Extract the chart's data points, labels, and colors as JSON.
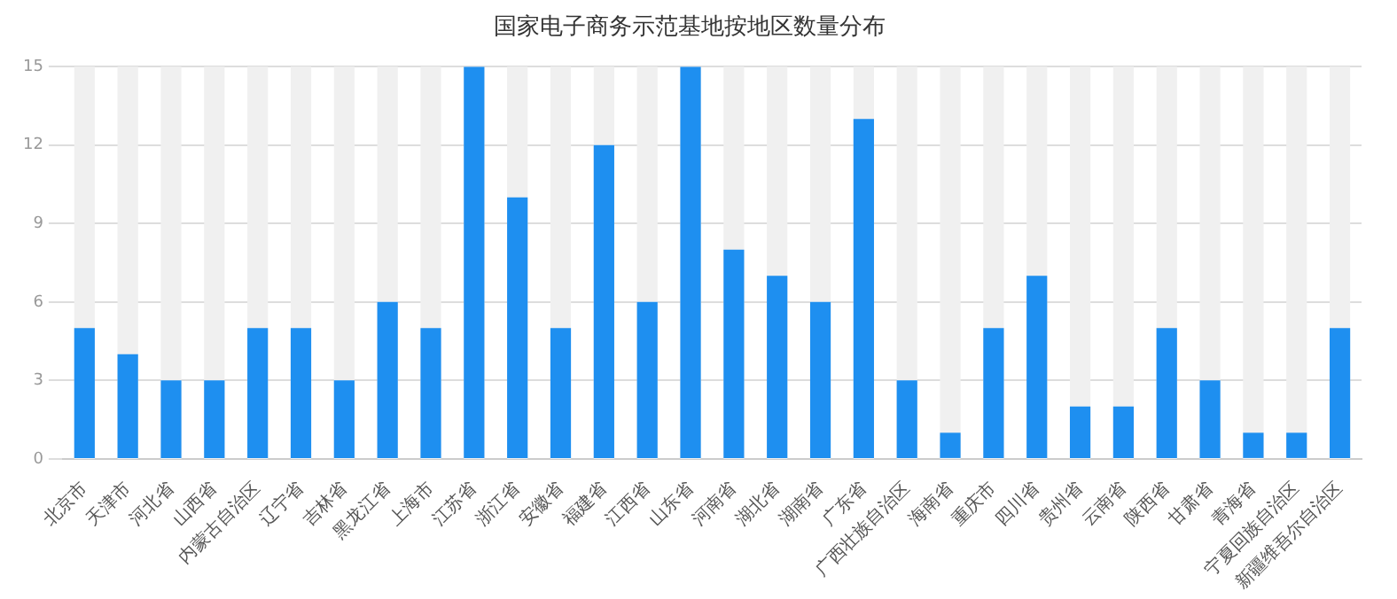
{
  "chart_data": {
    "type": "bar",
    "title": "国家电子商务示范基地按地区数量分布",
    "categories": [
      "北京市",
      "天津市",
      "河北省",
      "山西省",
      "内蒙古自治区",
      "辽宁省",
      "吉林省",
      "黑龙江省",
      "上海市",
      "江苏省",
      "浙江省",
      "安徽省",
      "福建省",
      "江西省",
      "山东省",
      "河南省",
      "湖北省",
      "湖南省",
      "广东省",
      "广西壮族自治区",
      "海南省",
      "重庆市",
      "四川省",
      "贵州省",
      "云南省",
      "陕西省",
      "甘肃省",
      "青海省",
      "宁夏回族自治区",
      "新疆维吾尔自治区"
    ],
    "values": [
      5,
      4,
      3,
      3,
      5,
      5,
      3,
      6,
      5,
      15,
      10,
      5,
      12,
      6,
      15,
      8,
      7,
      6,
      13,
      3,
      1,
      5,
      7,
      2,
      2,
      5,
      3,
      1,
      1,
      5
    ],
    "color": "#1e8ff0",
    "ylim": [
      0,
      15
    ],
    "yticks": [
      0,
      3,
      6,
      9,
      12,
      15
    ],
    "grid": "y"
  }
}
